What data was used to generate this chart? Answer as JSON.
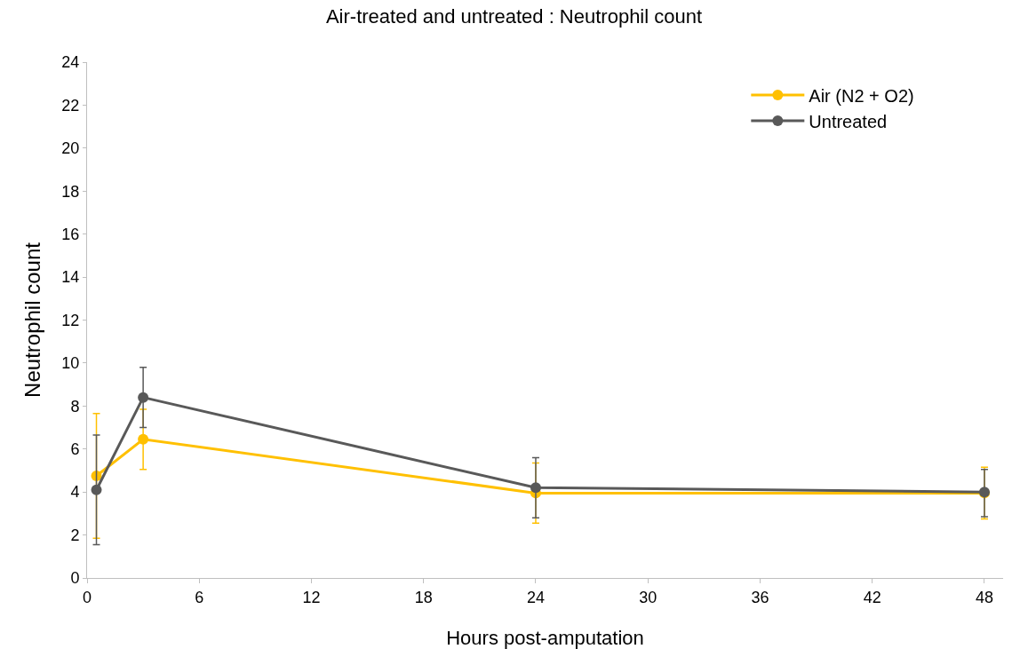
{
  "chart_data": {
    "type": "line",
    "title": "Air-treated and untreated : Neutrophil count",
    "xlabel": "Hours post-amputation",
    "ylabel": "Neutrophil count",
    "x": [
      0.5,
      3,
      24,
      48
    ],
    "series": [
      {
        "name": "Air (N2 + O2)",
        "color": "#ffc000",
        "values": [
          4.75,
          6.45,
          3.95,
          3.95
        ],
        "errors": [
          2.9,
          1.4,
          1.4,
          1.2
        ]
      },
      {
        "name": "Untreated",
        "color": "#595959",
        "values": [
          4.1,
          8.4,
          4.2,
          4.0
        ],
        "errors": [
          2.55,
          1.4,
          1.4,
          [
            2.85,
            5.05
          ]
        ]
      }
    ],
    "xlim": [
      0,
      49
    ],
    "xticks": [
      0,
      6,
      12,
      18,
      24,
      30,
      36,
      42,
      48
    ],
    "ylim": [
      0,
      24
    ],
    "yticks": [
      0,
      2,
      4,
      6,
      8,
      10,
      12,
      14,
      16,
      18,
      20,
      22,
      24
    ],
    "grid": false,
    "legend": "top right",
    "marker": "circle",
    "line_style": "solid"
  }
}
